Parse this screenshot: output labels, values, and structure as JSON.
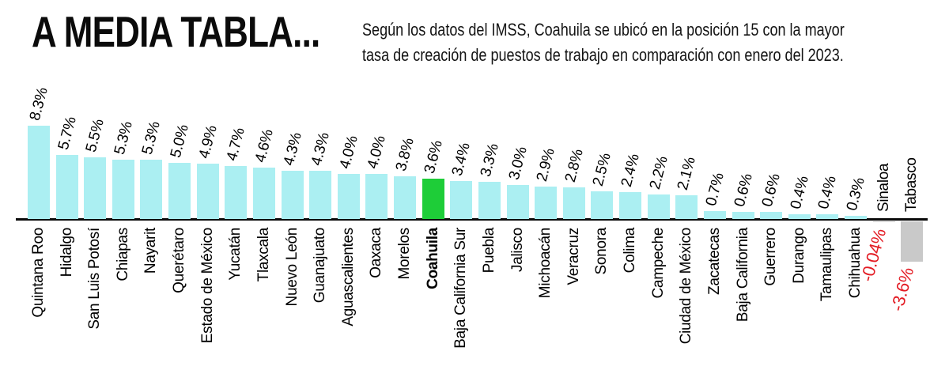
{
  "header": {
    "title": "A MEDIA TABLA...",
    "subtitle_line1": "Según los datos del IMSS, Coahuila se ubicó en la posición 15 con la mayor",
    "subtitle_line2": "tasa de creación de puestos de trabajo en comparación con enero del 2023."
  },
  "chart_data": {
    "type": "bar",
    "title": "A MEDIA TABLA...",
    "subtitle": "Según los datos del IMSS, Coahuila se ubicó en la posición 15 con la mayor tasa de creación de puestos de trabajo en comparación con enero del 2023.",
    "unit": "%",
    "xlabel": "",
    "ylabel": "",
    "ylim": [
      -4,
      9
    ],
    "grid": false,
    "legend": false,
    "highlight_category": "Coahuila",
    "categories": [
      "Quintana Roo",
      "Hidalgo",
      "San Luis Potosí",
      "Chiapas",
      "Nayarit",
      "Querétaro",
      "Estado de México",
      "Yucatán",
      "Tlaxcala",
      "Nuevo León",
      "Guanajuato",
      "Aguascalientes",
      "Oaxaca",
      "Morelos",
      "Coahuila",
      "Baja California Sur",
      "Puebla",
      "Jalisco",
      "Michoacán",
      "Veracruz",
      "Sonora",
      "Colima",
      "Campeche",
      "Ciudad de México",
      "Zacatecas",
      "Baja California",
      "Guerrero",
      "Durango",
      "Tamaulipas",
      "Chihuahua",
      "Sinaloa",
      "Tabasco"
    ],
    "values": [
      8.3,
      5.7,
      5.5,
      5.3,
      5.3,
      5.0,
      4.9,
      4.7,
      4.6,
      4.3,
      4.3,
      4.0,
      4.0,
      3.8,
      3.6,
      3.4,
      3.3,
      3.0,
      2.9,
      2.8,
      2.5,
      2.4,
      2.2,
      2.1,
      0.7,
      0.6,
      0.6,
      0.4,
      0.4,
      0.3,
      -0.04,
      -3.6
    ],
    "value_labels": [
      "8.3%",
      "5.7%",
      "5.5%",
      "5.3%",
      "5.3%",
      "5.0%",
      "4.9%",
      "4.7%",
      "4.6%",
      "4.3%",
      "4.3%",
      "4.0%",
      "4.0%",
      "3.8%",
      "3.6%",
      "3.4%",
      "3.3%",
      "3.0%",
      "2.9%",
      "2.8%",
      "2.5%",
      "2.4%",
      "2.2%",
      "2.1%",
      "0.7%",
      "0.6%",
      "0.6%",
      "0.4%",
      "0.4%",
      "0.3%",
      "-0.04%",
      "-3.6%"
    ],
    "colors": {
      "bar_default": "#abeff2",
      "bar_highlight": "#1ecd38",
      "bar_negative": "#c9c9c9",
      "value_label": "#000000",
      "negative_value_label": "#e31b23",
      "axis": "#0a0a0a",
      "background": "#ffffff"
    }
  }
}
